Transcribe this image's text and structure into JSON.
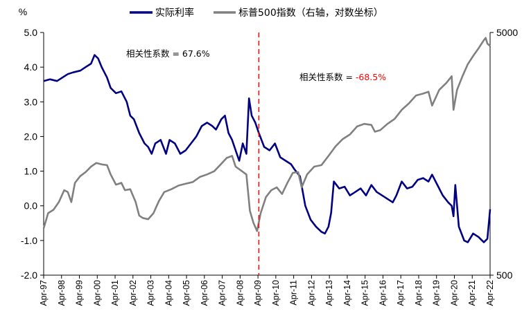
{
  "chart_data": {
    "type": "line",
    "left_unit": "%",
    "legend": {
      "items": [
        {
          "name": "实际利率",
          "color": "#000080"
        },
        {
          "name": "标普500指数（右轴，对数坐标）",
          "color": "#808080"
        }
      ]
    },
    "y_left": {
      "min": -2.0,
      "max": 5.0,
      "ticks": [
        "5.0",
        "4.0",
        "3.0",
        "2.0",
        "1.0",
        "0.0",
        "-1.0",
        "-2.0"
      ],
      "tick_values": [
        5,
        4,
        3,
        2,
        1,
        0,
        -1,
        -2
      ]
    },
    "y_right": {
      "scale": "log",
      "min": 500,
      "max": 5000,
      "ticks": [
        "5000",
        "500"
      ],
      "tick_values": [
        5000,
        500
      ]
    },
    "x_axis": {
      "start": 1997.25,
      "end": 2022.25,
      "ticks": [
        "Apr-97",
        "Apr-98",
        "Apr-99",
        "Apr-00",
        "Apr-01",
        "Apr-02",
        "Apr-03",
        "Apr-04",
        "Apr-05",
        "Apr-06",
        "Apr-07",
        "Apr-08",
        "Apr-09",
        "Apr-10",
        "Apr-11",
        "Apr-12",
        "Apr-13",
        "Apr-14",
        "Apr-15",
        "Apr-16",
        "Apr-17",
        "Apr-18",
        "Apr-19",
        "Apr-20",
        "Apr-21",
        "Apr-22"
      ]
    },
    "divider": {
      "x": 2009.3,
      "color": "#ff0000"
    },
    "annotations": {
      "first": {
        "label": "相关性系数 = ",
        "value": "67.6%",
        "value_color": "#000000"
      },
      "second": {
        "label": "相关性系数 = ",
        "value": "-68.5%",
        "value_color": "#ff0000"
      }
    },
    "series": [
      {
        "name": "实际利率",
        "color": "#000080",
        "axis": "left",
        "x": [
          1997.25,
          1997.6,
          1998.0,
          1998.3,
          1998.6,
          1998.9,
          1999.3,
          1999.6,
          1999.9,
          2000.1,
          2000.3,
          2000.5,
          2000.8,
          2001.0,
          2001.3,
          2001.6,
          2001.9,
          2002.1,
          2002.3,
          2002.6,
          2002.9,
          2003.1,
          2003.3,
          2003.5,
          2003.8,
          2004.1,
          2004.3,
          2004.6,
          2004.9,
          2005.2,
          2005.5,
          2005.8,
          2006.1,
          2006.4,
          2006.7,
          2006.9,
          2007.2,
          2007.4,
          2007.6,
          2007.8,
          2008.0,
          2008.2,
          2008.4,
          2008.6,
          2008.75,
          2008.9,
          2009.1,
          2009.3,
          2009.6,
          2009.9,
          2010.2,
          2010.5,
          2010.8,
          2011.1,
          2011.3,
          2011.6,
          2011.9,
          2012.2,
          2012.5,
          2012.8,
          2013.0,
          2013.2,
          2013.35,
          2013.5,
          2013.8,
          2014.1,
          2014.4,
          2014.7,
          2015.0,
          2015.3,
          2015.6,
          2015.9,
          2016.2,
          2016.5,
          2016.8,
          2017.0,
          2017.3,
          2017.6,
          2017.9,
          2018.2,
          2018.5,
          2018.8,
          2019.0,
          2019.3,
          2019.6,
          2019.9,
          2020.1,
          2020.2,
          2020.3,
          2020.5,
          2020.8,
          2021.0,
          2021.3,
          2021.6,
          2021.9,
          2022.1,
          2022.25
        ],
        "values": [
          3.6,
          3.65,
          3.6,
          3.7,
          3.8,
          3.85,
          3.9,
          4.0,
          4.1,
          4.35,
          4.25,
          4.0,
          3.7,
          3.4,
          3.25,
          3.3,
          3.0,
          2.6,
          2.5,
          2.1,
          1.8,
          1.7,
          1.5,
          1.8,
          1.9,
          1.5,
          1.9,
          1.8,
          1.5,
          1.6,
          1.8,
          2.0,
          2.3,
          2.4,
          2.3,
          2.2,
          2.5,
          2.6,
          2.1,
          1.9,
          1.6,
          1.3,
          1.8,
          1.5,
          3.1,
          2.6,
          2.4,
          2.1,
          1.7,
          1.6,
          1.8,
          1.4,
          1.3,
          1.2,
          1.05,
          0.85,
          0.0,
          -0.4,
          -0.6,
          -0.75,
          -0.8,
          -0.6,
          -0.2,
          0.7,
          0.5,
          0.55,
          0.3,
          0.4,
          0.5,
          0.3,
          0.6,
          0.4,
          0.3,
          0.2,
          0.1,
          0.3,
          0.7,
          0.5,
          0.55,
          0.75,
          0.8,
          0.7,
          0.9,
          0.6,
          0.3,
          0.1,
          0.0,
          -0.3,
          0.6,
          -0.6,
          -1.0,
          -1.05,
          -0.8,
          -0.9,
          -1.05,
          -0.95,
          -0.1
        ]
      },
      {
        "name": "标普500指数（右轴，对数坐标）",
        "color": "#808080",
        "axis": "right",
        "x": [
          1997.25,
          1997.5,
          1997.8,
          1998.1,
          1998.4,
          1998.6,
          1998.8,
          1999.0,
          1999.3,
          1999.6,
          1999.9,
          2000.2,
          2000.5,
          2000.8,
          2001.0,
          2001.3,
          2001.6,
          2001.8,
          2002.1,
          2002.4,
          2002.6,
          2002.8,
          2003.1,
          2003.4,
          2003.7,
          2004.0,
          2004.4,
          2004.8,
          2005.2,
          2005.6,
          2006.0,
          2006.4,
          2006.8,
          2007.2,
          2007.5,
          2007.8,
          2008.0,
          2008.3,
          2008.6,
          2008.8,
          2009.0,
          2009.2,
          2009.4,
          2009.7,
          2010.0,
          2010.3,
          2010.6,
          2010.9,
          2011.2,
          2011.5,
          2011.7,
          2012.0,
          2012.4,
          2012.8,
          2013.2,
          2013.6,
          2014.0,
          2014.4,
          2014.8,
          2015.2,
          2015.6,
          2015.8,
          2016.1,
          2016.5,
          2016.9,
          2017.3,
          2017.7,
          2018.1,
          2018.5,
          2018.8,
          2019.0,
          2019.4,
          2019.8,
          2020.1,
          2020.2,
          2020.4,
          2020.7,
          2021.0,
          2021.3,
          2021.6,
          2021.9,
          2022.0,
          2022.1,
          2022.25
        ],
        "values": [
          780,
          900,
          930,
          1000,
          1120,
          1100,
          1000,
          1200,
          1280,
          1330,
          1400,
          1450,
          1430,
          1420,
          1300,
          1180,
          1200,
          1120,
          1130,
          1000,
          880,
          860,
          850,
          900,
          1010,
          1100,
          1130,
          1170,
          1190,
          1210,
          1270,
          1300,
          1340,
          1440,
          1520,
          1550,
          1400,
          1350,
          1300,
          920,
          820,
          760,
          900,
          1050,
          1120,
          1150,
          1080,
          1200,
          1320,
          1330,
          1150,
          1300,
          1400,
          1420,
          1550,
          1700,
          1820,
          1900,
          2050,
          2100,
          2080,
          1950,
          1980,
          2100,
          2200,
          2400,
          2550,
          2750,
          2800,
          2850,
          2500,
          2900,
          3100,
          3300,
          2400,
          2900,
          3300,
          3700,
          4000,
          4300,
          4650,
          4750,
          4500,
          4400
        ]
      }
    ]
  }
}
